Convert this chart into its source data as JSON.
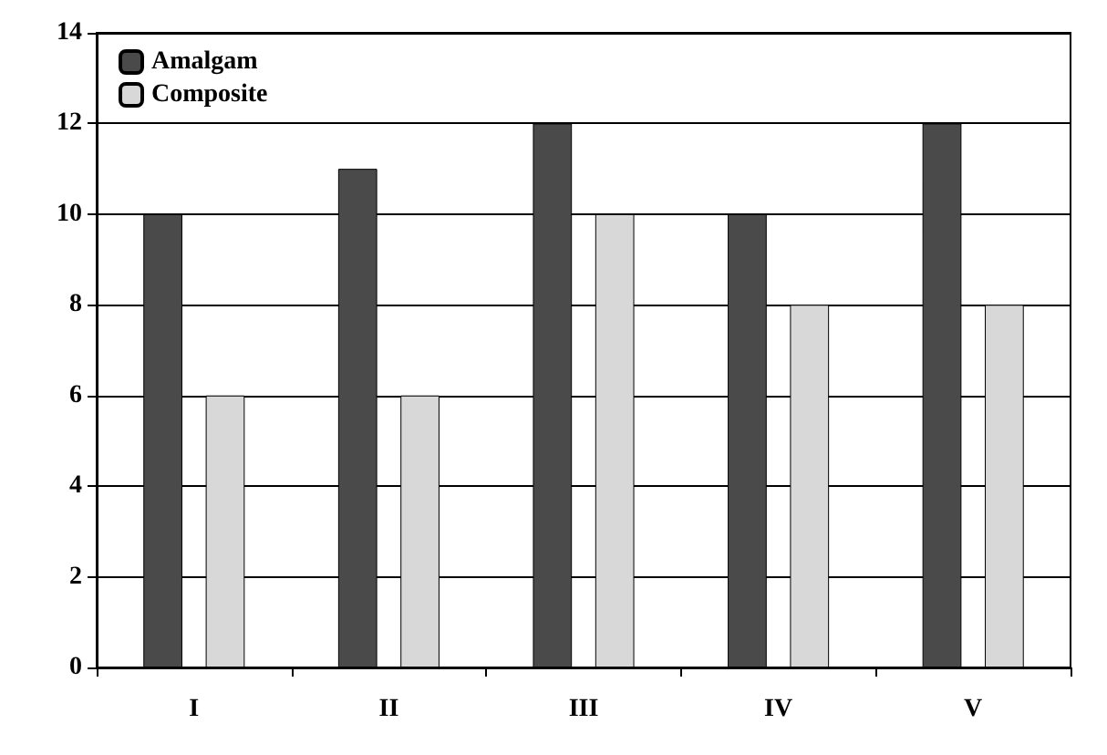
{
  "chart_data": {
    "type": "bar",
    "categories": [
      "I",
      "II",
      "III",
      "IV",
      "V"
    ],
    "series": [
      {
        "name": "Amalgam",
        "color": "#4a4a4a",
        "values": [
          10,
          11,
          12,
          10,
          12
        ]
      },
      {
        "name": "Composite",
        "color": "#d8d8d8",
        "values": [
          6,
          6,
          10,
          8,
          8
        ]
      }
    ],
    "ylim": [
      0,
      14
    ],
    "yticks": [
      0,
      2,
      4,
      6,
      8,
      10,
      12,
      14
    ],
    "grid": "y",
    "legend": "top left"
  }
}
